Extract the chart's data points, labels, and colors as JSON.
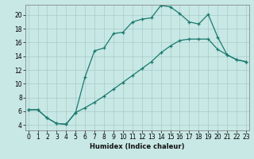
{
  "bg_color": "#c8e8e5",
  "grid_color": "#a8ccc9",
  "line_color": "#1a7a6e",
  "xlabel": "Humidex (Indice chaleur)",
  "xlim_min": -0.3,
  "xlim_max": 23.3,
  "ylim_min": 3.2,
  "ylim_max": 21.5,
  "yticks": [
    4,
    6,
    8,
    10,
    12,
    14,
    16,
    18,
    20
  ],
  "xticks": [
    0,
    1,
    2,
    3,
    4,
    5,
    6,
    7,
    8,
    9,
    10,
    11,
    12,
    13,
    14,
    15,
    16,
    17,
    18,
    19,
    20,
    21,
    22,
    23
  ],
  "line_upper_x": [
    0,
    1,
    2,
    3,
    4,
    5,
    6,
    7,
    8,
    9,
    10,
    11,
    12,
    13,
    14,
    15,
    16,
    17,
    18,
    19,
    20,
    21,
    22,
    23
  ],
  "line_upper_y": [
    6.2,
    6.2,
    5.0,
    4.2,
    4.1,
    5.8,
    11.0,
    14.8,
    15.2,
    17.3,
    17.5,
    19.0,
    19.4,
    19.6,
    21.4,
    21.2,
    20.2,
    19.0,
    18.7,
    20.1,
    16.8,
    14.2,
    13.5,
    13.2
  ],
  "line_lower_x": [
    0,
    1,
    2,
    3,
    4,
    5,
    6,
    7,
    8,
    9,
    10,
    11,
    12,
    13,
    14,
    15,
    16,
    17,
    18,
    19,
    20,
    21,
    22,
    23
  ],
  "line_lower_y": [
    6.2,
    6.2,
    5.0,
    4.2,
    4.1,
    5.8,
    6.5,
    7.3,
    8.2,
    9.2,
    10.2,
    11.2,
    12.2,
    13.2,
    14.5,
    15.5,
    16.3,
    16.5,
    16.5,
    16.5,
    15.0,
    14.2,
    13.5,
    13.2
  ],
  "marker_size": 3,
  "linewidth": 0.9,
  "xlabel_fontsize": 6,
  "tick_labelsize": 5.5
}
